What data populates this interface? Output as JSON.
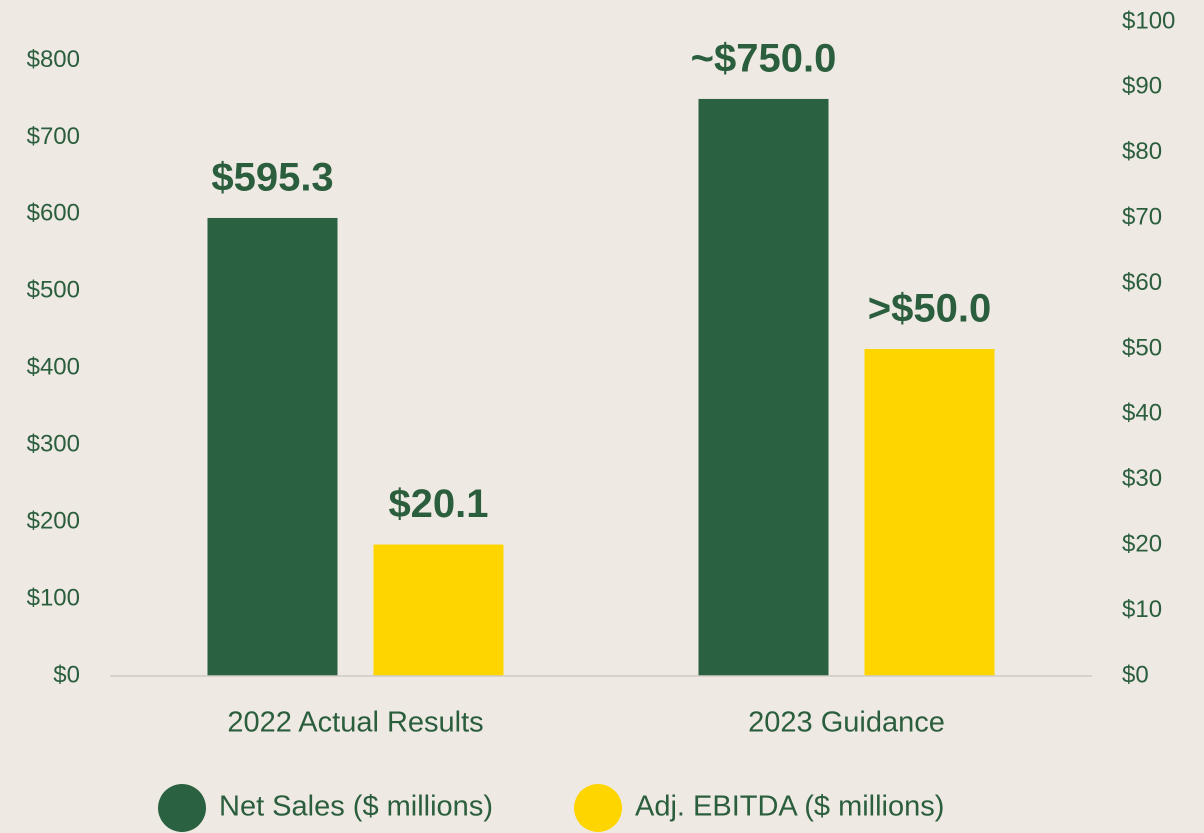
{
  "chart_data": {
    "type": "bar",
    "categories": [
      "2022 Actual Results",
      "2023 Guidance"
    ],
    "series": [
      {
        "name": "Net Sales ($ millions)",
        "color": "#2a6141",
        "values": [
          595.3,
          750.0
        ],
        "value_labels": [
          "$595.3",
          "~$750.0"
        ]
      },
      {
        "name": "Adj. EBITDA ($ millions)",
        "color": "#ffd500",
        "axis": "y2",
        "values": [
          20.1,
          50.0
        ],
        "value_labels": [
          "$20.1",
          ">$50.0"
        ]
      }
    ],
    "ylim": [
      0,
      850
    ],
    "yticks": [
      {
        "value": 0,
        "label": "$0"
      },
      {
        "value": 100,
        "label": "$100"
      },
      {
        "value": 200,
        "label": "$200"
      },
      {
        "value": 300,
        "label": "$300"
      },
      {
        "value": 400,
        "label": "$400"
      },
      {
        "value": 500,
        "label": "$500"
      },
      {
        "value": 600,
        "label": "$600"
      },
      {
        "value": 700,
        "label": "$700"
      },
      {
        "value": 800,
        "label": "$800"
      }
    ],
    "y2lim": [
      0,
      100
    ],
    "y2ticks": [
      {
        "value": 0,
        "label": "$0"
      },
      {
        "value": 10,
        "label": "$10"
      },
      {
        "value": 20,
        "label": "$20"
      },
      {
        "value": 30,
        "label": "$30"
      },
      {
        "value": 40,
        "label": "$40"
      },
      {
        "value": 50,
        "label": "$50"
      },
      {
        "value": 60,
        "label": "$60"
      },
      {
        "value": 70,
        "label": "$70"
      },
      {
        "value": 80,
        "label": "$80"
      },
      {
        "value": 90,
        "label": "$90"
      },
      {
        "value": 100,
        "label": "$100"
      }
    ],
    "grid": false,
    "legend": "bottom"
  }
}
